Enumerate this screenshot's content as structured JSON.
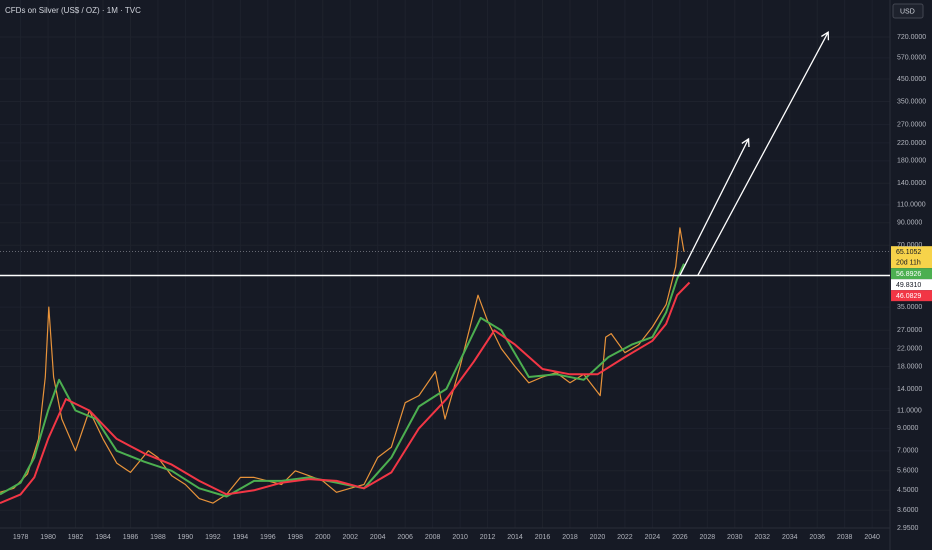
{
  "chart_data": {
    "type": "line",
    "title": "CFDs on Silver (US$ / OZ) · 1M · TVC",
    "currency": "USD",
    "log_scale": true,
    "grid": true,
    "xlim": [
      1976.5,
      2041.3
    ],
    "ylim": [
      2.885,
      1090
    ],
    "xticks": [
      1978,
      1980,
      1982,
      1984,
      1986,
      1988,
      1990,
      1992,
      1994,
      1996,
      1998,
      2000,
      2002,
      2004,
      2006,
      2008,
      2010,
      2012,
      2014,
      2016,
      2018,
      2020,
      2022,
      2024,
      2026,
      2028,
      2030,
      2032,
      2034,
      2036,
      2038,
      2040
    ],
    "yticks": [
      {
        "value": 2.95,
        "label": "2.9500"
      },
      {
        "value": 3.6,
        "label": "3.6000"
      },
      {
        "value": 4.5,
        "label": "4.5000"
      },
      {
        "value": 5.6,
        "label": "5.6000"
      },
      {
        "value": 7,
        "label": "7.0000"
      },
      {
        "value": 9,
        "label": "9.0000"
      },
      {
        "value": 11,
        "label": "11.0000"
      },
      {
        "value": 14,
        "label": "14.0000"
      },
      {
        "value": 18,
        "label": "18.0000"
      },
      {
        "value": 22,
        "label": "22.0000"
      },
      {
        "value": 27,
        "label": "27.0000"
      },
      {
        "value": 35,
        "label": "35.0000"
      },
      {
        "value": 70,
        "label": "70.0000"
      },
      {
        "value": 90,
        "label": "90.0000"
      },
      {
        "value": 110,
        "label": "110.0000"
      },
      {
        "value": 140,
        "label": "140.0000"
      },
      {
        "value": 180,
        "label": "180.0000"
      },
      {
        "value": 220,
        "label": "220.0000"
      },
      {
        "value": 270,
        "label": "270.0000"
      },
      {
        "value": 350,
        "label": "350.0000"
      },
      {
        "value": 450,
        "label": "450.0000"
      },
      {
        "value": 570,
        "label": "570.0000"
      },
      {
        "value": 720,
        "label": "720.0000"
      }
    ],
    "series": [
      {
        "color": "#e8933a",
        "x": [
          1976.5,
          1977.5,
          1978.5,
          1979.3,
          1979.8,
          1980.05,
          1980.4,
          1981,
          1982,
          1983,
          1984,
          1985,
          1986,
          1987.3,
          1988,
          1989,
          1990,
          1991,
          1992,
          1993,
          1994,
          1995,
          1996,
          1997,
          1998,
          1999,
          2000,
          2001,
          2002,
          2003,
          2004,
          2005,
          2006,
          2007,
          2008.2,
          2008.9,
          2010,
          2011.3,
          2012,
          2013,
          2014,
          2015,
          2016,
          2017,
          2018,
          2019,
          2020.2,
          2020.6,
          2021,
          2022,
          2023,
          2024,
          2025,
          2025.7,
          2026.0,
          2026.3
        ],
        "values": [
          4.4,
          4.6,
          5.4,
          8,
          16,
          35,
          16,
          10,
          7,
          11,
          8,
          6.1,
          5.5,
          7,
          6.5,
          5.3,
          4.8,
          4.1,
          3.9,
          4.3,
          5.2,
          5.2,
          5.0,
          4.8,
          5.6,
          5.3,
          5.0,
          4.4,
          4.6,
          4.8,
          6.5,
          7.3,
          12,
          13,
          17,
          10,
          18,
          40,
          30,
          22,
          18,
          15,
          16,
          16.8,
          15,
          16.5,
          13,
          25,
          26,
          21,
          23,
          28,
          36,
          55,
          85,
          65.1052
        ]
      },
      {
        "color": "#4caf50",
        "x": [
          1976.5,
          1978,
          1979,
          1980,
          1980.8,
          1982,
          1983.5,
          1985,
          1987,
          1989,
          1991,
          1993,
          1995,
          1997,
          1999,
          2001,
          2003,
          2005,
          2007,
          2009,
          2011.5,
          2013,
          2015,
          2017,
          2019,
          2020.8,
          2022.5,
          2024,
          2025,
          2025.8,
          2026.3
        ],
        "values": [
          4.3,
          4.9,
          6.5,
          11,
          15.5,
          11,
          10,
          7,
          6.2,
          5.6,
          4.6,
          4.2,
          5.0,
          5.0,
          5.2,
          4.9,
          4.6,
          6.5,
          11.5,
          14,
          31,
          27,
          16,
          16.5,
          15.5,
          20,
          23,
          25,
          33,
          48,
          56.8926
        ]
      },
      {
        "color": "#f23645",
        "x": [
          1976.5,
          1978,
          1979,
          1980,
          1981.3,
          1983,
          1985,
          1987,
          1989,
          1991,
          1993,
          1995,
          1997,
          1999,
          2001,
          2003,
          2005,
          2007,
          2009,
          2011,
          2012.5,
          2014,
          2016,
          2018,
          2020,
          2022,
          2024,
          2025,
          2025.8,
          2026.7
        ],
        "values": [
          3.9,
          4.3,
          5.2,
          8,
          12.5,
          11,
          8,
          6.8,
          6.0,
          5.0,
          4.3,
          4.5,
          4.9,
          5.1,
          5.0,
          4.6,
          5.5,
          9,
          12.5,
          19,
          27,
          23,
          17.5,
          16.5,
          16.5,
          20,
          24,
          29,
          40,
          46.0829
        ]
      }
    ],
    "annotations": [
      {
        "x": [
          2026.0,
          2031.0
        ],
        "y": [
          49.831,
          230
        ]
      },
      {
        "x": [
          2027.3,
          2036.8
        ],
        "y": [
          49.831,
          760
        ]
      }
    ],
    "price_labels": [
      {
        "value": 65.1052,
        "label": "65.1052",
        "color": "#f7d34a",
        "line": "dashed"
      },
      {
        "value": 56.8926,
        "label": "56.8926",
        "color": "#4caf50"
      },
      {
        "value": 49.831,
        "label": "49.8310",
        "color": "#ffffff",
        "line": "solid"
      },
      {
        "value": 46.0829,
        "label": "46.0829",
        "color": "#f23645"
      }
    ],
    "countdown": "20d 11h"
  }
}
